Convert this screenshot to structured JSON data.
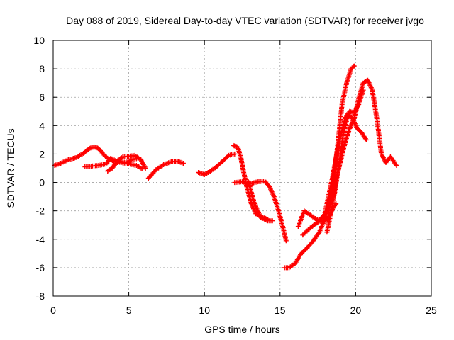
{
  "chart_data": {
    "type": "scatter",
    "title": "Day 088 of 2019, Sidereal Day-to-day VTEC variation (SDTVAR) for receiver jvgo",
    "xlabel": "GPS time / hours",
    "ylabel": "SDTVAR / TECUs",
    "xlim": [
      0,
      25
    ],
    "ylim": [
      -8,
      10
    ],
    "xticks": [
      0,
      5,
      10,
      15,
      20,
      25
    ],
    "yticks": [
      -8,
      -6,
      -4,
      -2,
      0,
      2,
      4,
      6,
      8,
      10
    ],
    "grid": true,
    "marker": "plus",
    "color": "#ff0000",
    "series": [
      {
        "x": [
          0.1,
          0.5,
          1.0,
          1.5,
          2.0,
          2.4,
          2.7,
          3.0,
          3.3,
          3.6,
          4.0,
          4.5,
          5.0,
          5.5,
          5.9
        ],
        "y": [
          1.2,
          1.35,
          1.6,
          1.75,
          2.05,
          2.4,
          2.5,
          2.4,
          2.0,
          1.7,
          1.5,
          1.4,
          1.3,
          1.2,
          0.95
        ]
      },
      {
        "x": [
          2.1,
          2.5,
          3.0,
          3.5,
          3.8,
          4.2,
          4.6,
          5.0,
          5.4,
          5.8,
          6.1
        ],
        "y": [
          1.1,
          1.15,
          1.2,
          1.3,
          1.7,
          1.5,
          1.8,
          1.85,
          1.9,
          1.6,
          1.0
        ]
      },
      {
        "x": [
          3.6,
          3.9,
          4.1,
          4.4,
          4.8,
          5.2,
          5.6
        ],
        "y": [
          0.8,
          1.0,
          1.3,
          1.5,
          1.4,
          1.6,
          1.7
        ]
      },
      {
        "x": [
          6.3,
          6.8,
          7.3,
          7.8,
          8.2,
          8.6
        ],
        "y": [
          0.3,
          0.9,
          1.25,
          1.45,
          1.5,
          1.35
        ]
      },
      {
        "x": [
          9.6,
          10.0,
          10.4,
          10.8,
          11.2,
          11.6,
          12.0
        ],
        "y": [
          0.7,
          0.55,
          0.8,
          1.1,
          1.5,
          1.9,
          2.0
        ]
      },
      {
        "x": [
          11.9,
          12.2,
          12.4,
          12.6,
          12.8,
          13.1,
          13.4,
          13.8,
          14.2,
          14.5
        ],
        "y": [
          2.6,
          2.5,
          1.8,
          0.7,
          -0.3,
          -1.5,
          -2.2,
          -2.5,
          -2.7,
          -2.7
        ]
      },
      {
        "x": [
          12.0,
          12.5,
          13.0,
          13.5,
          14.0,
          14.3,
          14.6,
          14.9,
          15.2,
          15.4
        ],
        "y": [
          0.0,
          0.05,
          -0.1,
          0.05,
          0.1,
          -0.3,
          -1.0,
          -2.0,
          -3.2,
          -4.1
        ]
      },
      {
        "x": [
          12.9,
          13.3,
          13.7,
          14.2
        ],
        "y": [
          0.1,
          -1.5,
          -2.4,
          -2.6
        ]
      },
      {
        "x": [
          15.3,
          15.6,
          16.0,
          16.4,
          16.8,
          17.2,
          17.6,
          18.0,
          18.4,
          18.8,
          19.1,
          19.4,
          19.7,
          19.9
        ],
        "y": [
          -6.0,
          -6.0,
          -5.7,
          -5.0,
          -4.6,
          -4.1,
          -3.5,
          -2.5,
          -0.8,
          2.5,
          5.5,
          7.0,
          8.0,
          8.2
        ]
      },
      {
        "x": [
          16.2,
          16.6,
          17.0,
          17.4,
          17.8,
          18.2,
          18.5,
          18.7
        ],
        "y": [
          -3.1,
          -2.0,
          -2.3,
          -2.6,
          -2.8,
          -2.5,
          -1.8,
          -1.5
        ]
      },
      {
        "x": [
          16.5,
          17.0,
          17.5,
          18.0,
          18.3,
          18.6,
          18.9,
          19.2,
          19.5,
          19.8,
          20.1,
          20.4,
          20.7
        ],
        "y": [
          -3.7,
          -3.2,
          -2.8,
          -2.2,
          -1.6,
          -0.8,
          1.3,
          3.5,
          4.8,
          4.5,
          3.8,
          3.5,
          3.0
        ]
      },
      {
        "x": [
          18.1,
          18.4,
          18.7,
          19.0,
          19.3,
          19.6,
          19.9,
          20.2,
          20.5,
          20.8,
          21.1,
          21.4,
          21.7,
          22.0,
          22.3,
          22.7
        ],
        "y": [
          -3.5,
          -2.0,
          0.2,
          1.5,
          2.8,
          3.8,
          4.5,
          5.9,
          7.0,
          7.2,
          6.5,
          4.5,
          2.0,
          1.4,
          1.8,
          1.2
        ]
      },
      {
        "x": [
          17.8,
          18.1,
          18.4,
          18.7,
          19.0,
          19.3,
          19.6,
          19.9,
          20.2,
          20.5
        ],
        "y": [
          -3.0,
          -1.5,
          0.0,
          1.7,
          3.2,
          4.5,
          5.0,
          4.9,
          5.5,
          6.5
        ]
      }
    ]
  }
}
